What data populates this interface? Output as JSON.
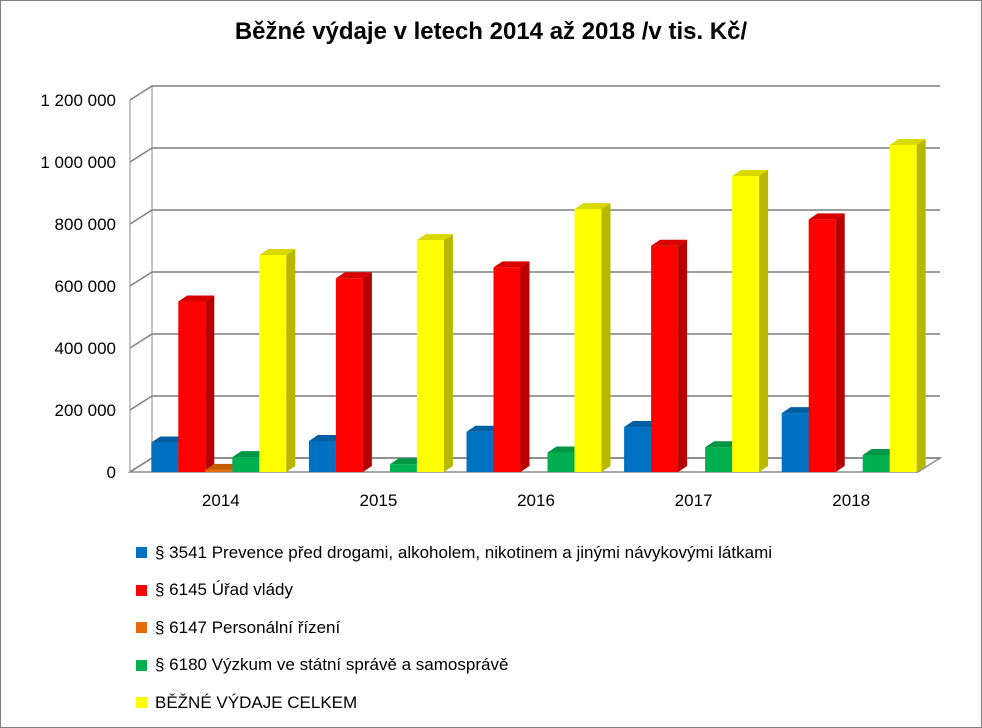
{
  "chart_data": {
    "type": "bar",
    "title": "Běžné výdaje v letech 2014 až 2018 /v tis. Kč/",
    "categories": [
      "2014",
      "2015",
      "2016",
      "2017",
      "2018"
    ],
    "ylim": [
      0,
      1200000
    ],
    "yticks": [
      0,
      200000,
      400000,
      600000,
      800000,
      1000000,
      1200000
    ],
    "ytick_labels": [
      "0",
      "200 000",
      "400 000",
      "600 000",
      "800 000",
      "1 000 000",
      "1 200 000"
    ],
    "grid": true,
    "three_d": true,
    "legend_position": "bottom",
    "series": [
      {
        "name": "§ 3541 Prevence před drogami, alkoholem, nikotinem a jinými návykovými látkami",
        "color": "#0070C0",
        "values": [
          95000,
          100000,
          130000,
          145000,
          190000
        ]
      },
      {
        "name": "§ 6145 Úřad vlády",
        "color": "#FF0000",
        "values": [
          550000,
          625000,
          660000,
          730000,
          815000
        ]
      },
      {
        "name": "§ 6147 Personální řízení",
        "color": "#E46C0A",
        "values": [
          7000,
          0,
          0,
          0,
          0
        ]
      },
      {
        "name": "§ 6180 Výzkum ve státní správě a samosprávě",
        "color": "#00B050",
        "values": [
          48000,
          25000,
          63000,
          80000,
          55000
        ]
      },
      {
        "name": "BĚŽNÉ VÝDAJE CELKEM",
        "color": "#FFFF00",
        "values": [
          700000,
          748000,
          848000,
          955000,
          1055000
        ]
      }
    ]
  }
}
